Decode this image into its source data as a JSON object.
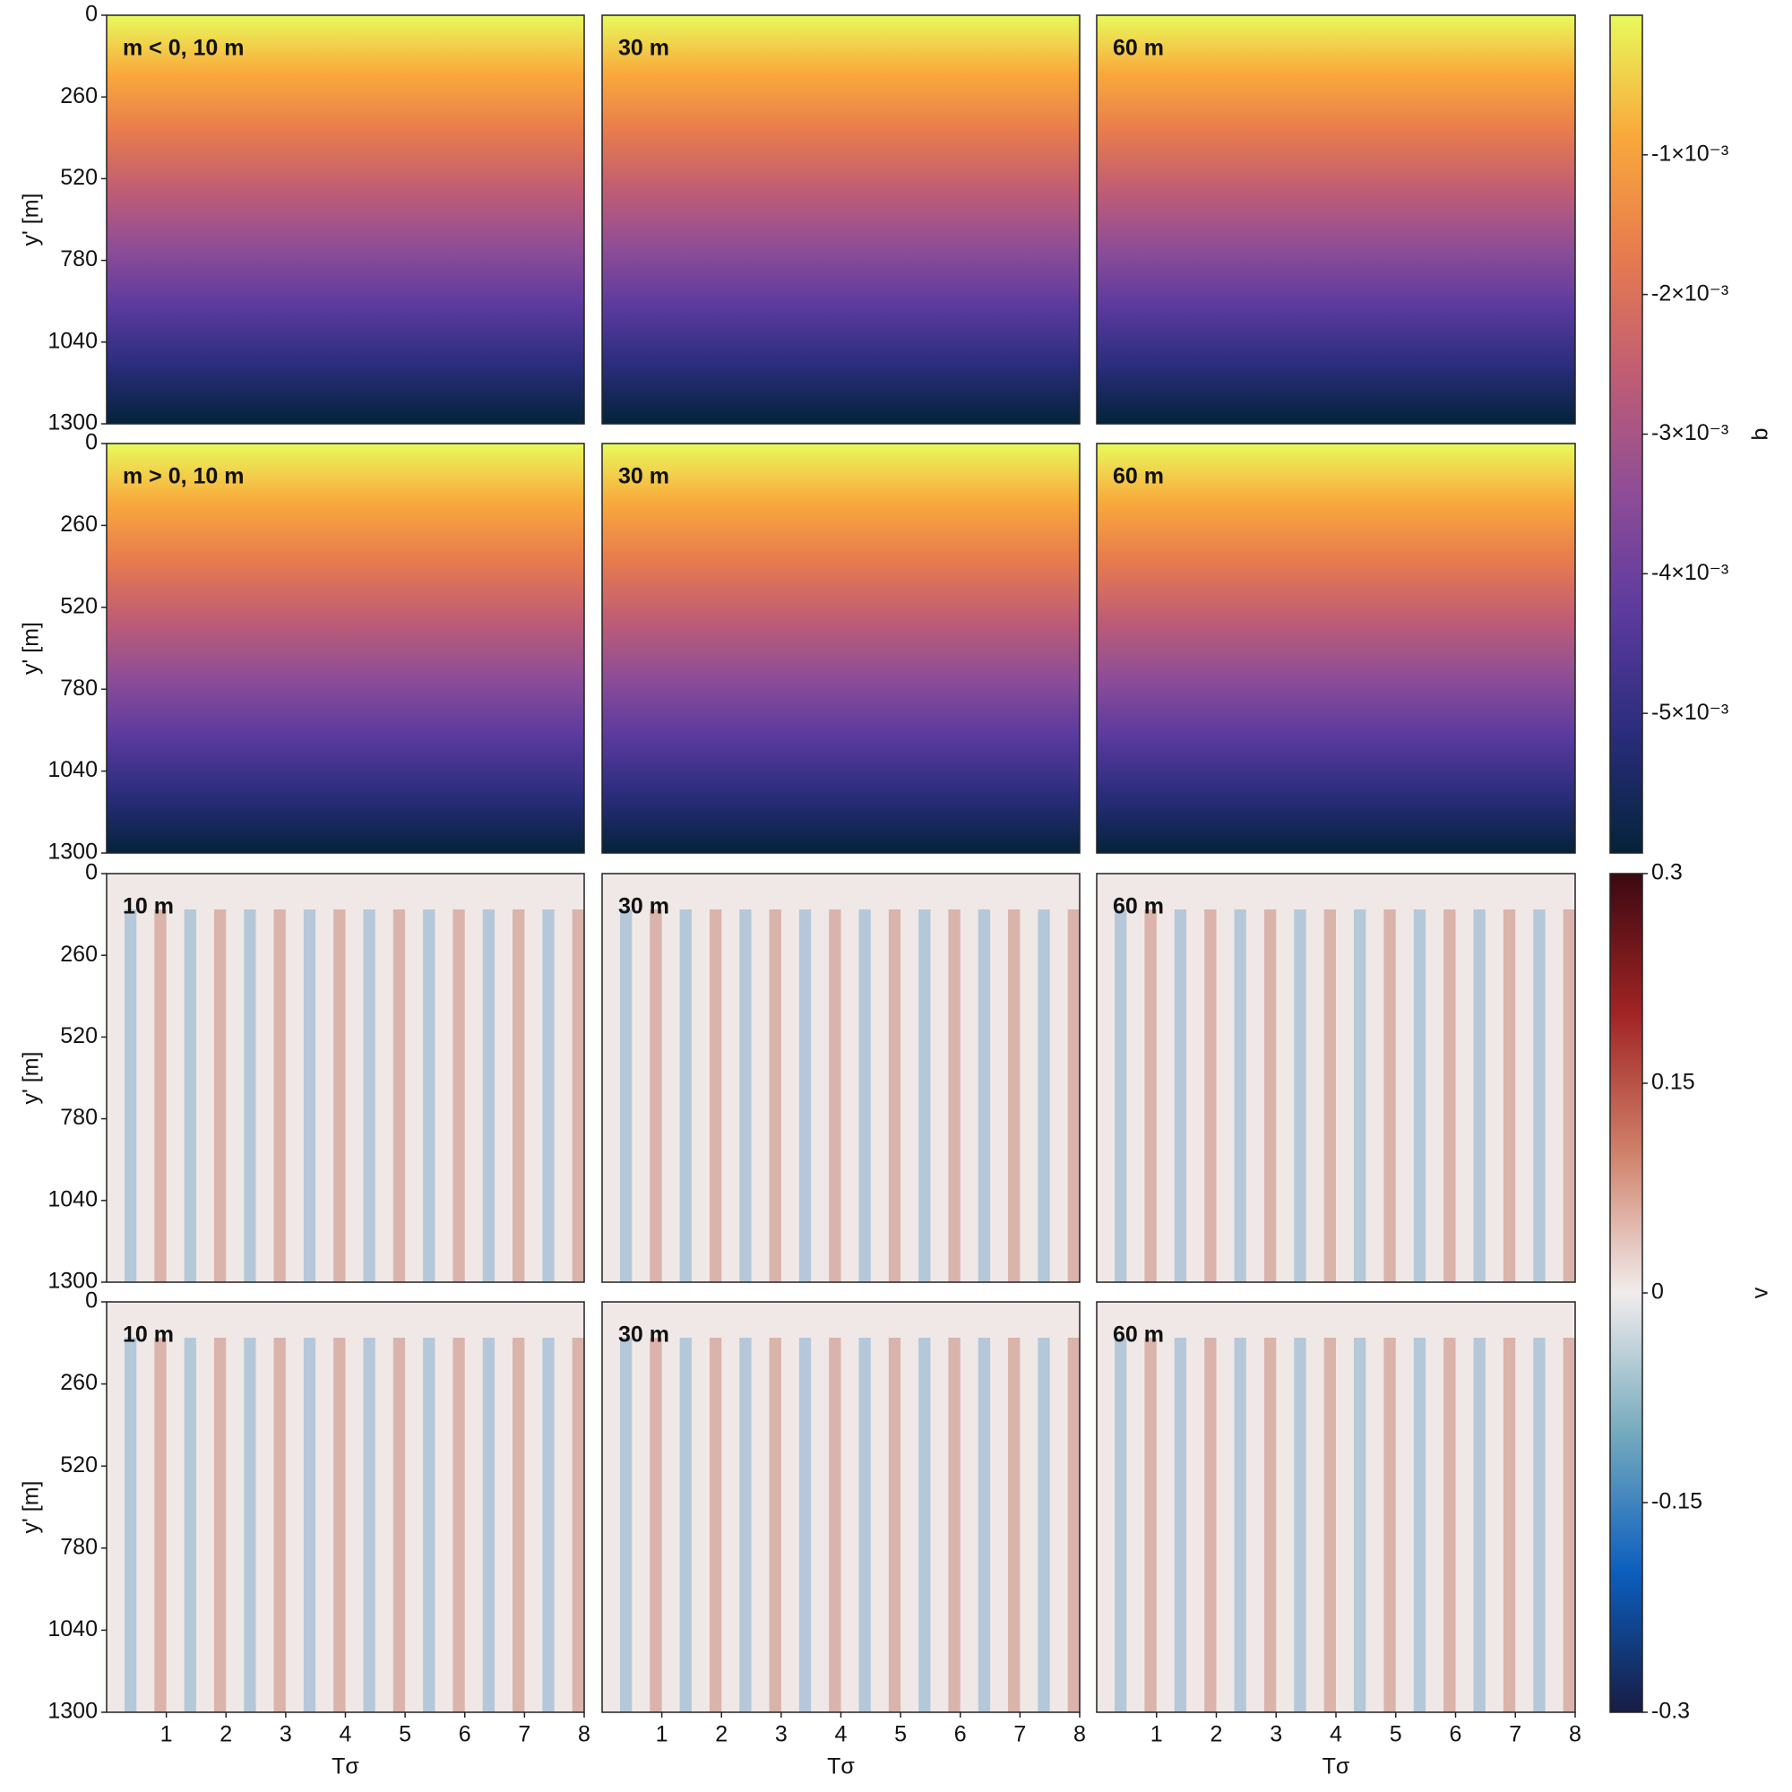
{
  "chart_data": [
    {
      "type": "heatmap",
      "label": "m < 0, 10 m",
      "ylabel": "y' [m]",
      "ylim": [
        1300,
        0
      ],
      "yticks": [
        0,
        260,
        520,
        780,
        1040,
        1300
      ],
      "xlim": [
        0,
        8
      ]
    },
    {
      "type": "heatmap",
      "label": "30 m",
      "ylim": [
        1300,
        0
      ],
      "xlim": [
        0,
        8
      ]
    },
    {
      "type": "heatmap",
      "label": "60 m",
      "ylim": [
        1300,
        0
      ],
      "xlim": [
        0,
        8
      ]
    },
    {
      "type": "heatmap",
      "label": "m > 0, 10 m",
      "ylabel": "y' [m]",
      "ylim": [
        1300,
        0
      ],
      "yticks": [
        0,
        260,
        520,
        780,
        1040,
        1300
      ],
      "xlim": [
        0,
        8
      ]
    },
    {
      "type": "heatmap",
      "label": "30 m",
      "ylim": [
        1300,
        0
      ],
      "xlim": [
        0,
        8
      ]
    },
    {
      "type": "heatmap",
      "label": "60 m",
      "ylim": [
        1300,
        0
      ],
      "xlim": [
        0,
        8
      ]
    },
    {
      "type": "heatmap",
      "label": "10 m",
      "ylabel": "y' [m]",
      "ylim": [
        1300,
        0
      ],
      "yticks": [
        0,
        260,
        520,
        780,
        1040,
        1300
      ],
      "xlim": [
        0,
        8
      ]
    },
    {
      "type": "heatmap",
      "label": "30 m",
      "ylim": [
        1300,
        0
      ],
      "xlim": [
        0,
        8
      ]
    },
    {
      "type": "heatmap",
      "label": "60 m",
      "ylim": [
        1300,
        0
      ],
      "xlim": [
        0,
        8
      ]
    },
    {
      "type": "heatmap",
      "label": "10 m",
      "ylabel": "y' [m]",
      "ylim": [
        1300,
        0
      ],
      "yticks": [
        0,
        260,
        520,
        780,
        1040,
        1300
      ],
      "xlim": [
        0,
        8
      ],
      "xlabel": "Tσ",
      "xticks": [
        1,
        2,
        3,
        4,
        5,
        6,
        7,
        8
      ]
    },
    {
      "type": "heatmap",
      "label": "30 m",
      "ylim": [
        1300,
        0
      ],
      "xlim": [
        0,
        8
      ],
      "xlabel": "Tσ",
      "xticks": [
        1,
        2,
        3,
        4,
        5,
        6,
        7,
        8
      ]
    },
    {
      "type": "heatmap",
      "label": "60 m",
      "ylim": [
        1300,
        0
      ],
      "xlim": [
        0,
        8
      ],
      "xlabel": "Tσ",
      "xticks": [
        1,
        2,
        3,
        4,
        5,
        6,
        7,
        8
      ]
    },
    {
      "type": "colorbar",
      "label": "b",
      "lim": [
        -0.006,
        0
      ],
      "ticks": [
        {
          "value": -0.001,
          "label": "-1×10⁻³"
        },
        {
          "value": -0.002,
          "label": "-2×10⁻³"
        },
        {
          "value": -0.003,
          "label": "-3×10⁻³"
        },
        {
          "value": -0.004,
          "label": "-4×10⁻³"
        },
        {
          "value": -0.005,
          "label": "-5×10⁻³"
        }
      ],
      "colors": [
        "#04233a",
        "#2a2d7c",
        "#5b3a9e",
        "#8e4d97",
        "#c05d74",
        "#e77b4e",
        "#f9a93c",
        "#e8fa5b"
      ]
    },
    {
      "type": "colorbar",
      "label": "v",
      "lim": [
        -0.3,
        0.3
      ],
      "ticks": [
        -0.3,
        -0.15,
        0,
        0.15,
        0.3
      ],
      "colors": [
        "#181c43",
        "#0c5ebe",
        "#75aabe",
        "#f1ecec",
        "#d0816a",
        "#a12424",
        "#3c0912"
      ]
    }
  ]
}
